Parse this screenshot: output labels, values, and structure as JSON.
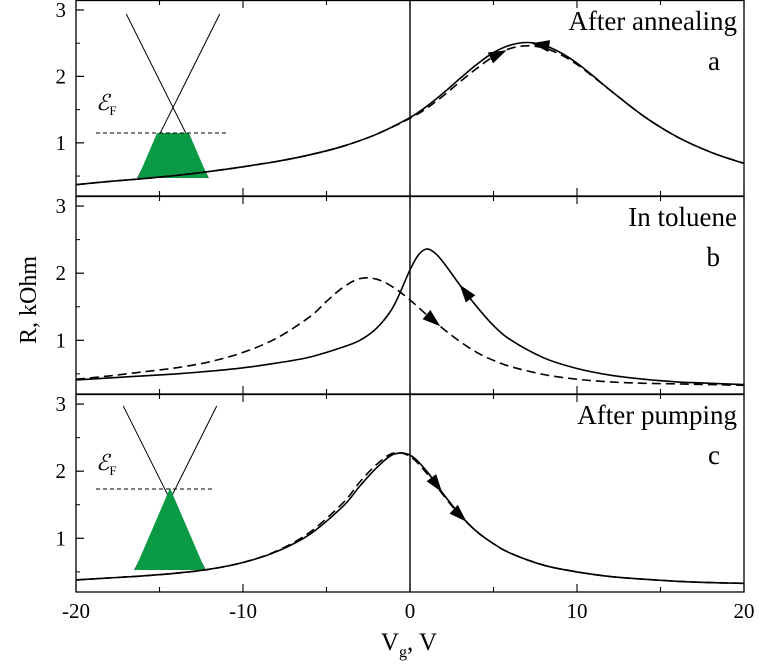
{
  "figure": {
    "ylabel": "R, kOhm",
    "xlabel_main": "V",
    "xlabel_sub": "g",
    "xlabel_unit": ", V",
    "x_ticks": [
      "-20",
      "-10",
      "0",
      "10",
      "20"
    ],
    "y_ticks": [
      "1",
      "2",
      "3"
    ],
    "ef_main": "ℰ",
    "ef_sub": "F"
  },
  "colors": {
    "dirac_fill": "#0a9a46",
    "line": "#000000"
  },
  "chart_data": [
    {
      "type": "line",
      "panel": "a",
      "title": "After annealing",
      "letter": "a",
      "xlim": [
        -20,
        20
      ],
      "ylim": [
        0.2,
        3.15
      ],
      "inset_fermi": "below_dirac",
      "series": [
        {
          "style": "solid",
          "x": [
            -20,
            -18,
            -16,
            -14,
            -12,
            -10,
            -8,
            -6,
            -4,
            -2,
            0,
            1,
            2,
            3,
            4,
            5,
            6,
            7,
            8,
            9,
            10,
            11,
            12,
            14,
            16,
            18,
            20
          ],
          "y": [
            0.37,
            0.42,
            0.46,
            0.51,
            0.57,
            0.64,
            0.72,
            0.82,
            0.95,
            1.13,
            1.38,
            1.55,
            1.75,
            1.97,
            2.18,
            2.36,
            2.47,
            2.51,
            2.47,
            2.36,
            2.2,
            2.0,
            1.79,
            1.4,
            1.09,
            0.86,
            0.69
          ]
        },
        {
          "style": "dashed",
          "x": [
            -20,
            -18,
            -16,
            -14,
            -12,
            -10,
            -8,
            -6,
            -4,
            -2,
            0,
            1,
            2,
            3,
            4,
            5,
            6,
            7,
            8,
            9,
            10,
            11,
            12,
            14,
            16,
            18,
            20
          ],
          "y": [
            0.37,
            0.42,
            0.46,
            0.51,
            0.57,
            0.64,
            0.72,
            0.82,
            0.95,
            1.13,
            1.37,
            1.52,
            1.71,
            1.92,
            2.12,
            2.3,
            2.42,
            2.46,
            2.43,
            2.33,
            2.18,
            1.99,
            1.79,
            1.4,
            1.09,
            0.86,
            0.69
          ]
        }
      ]
    },
    {
      "type": "line",
      "panel": "b",
      "title": "In  toluene",
      "letter": "b",
      "xlim": [
        -20,
        20
      ],
      "ylim": [
        0.2,
        3.15
      ],
      "series": [
        {
          "style": "solid",
          "x": [
            -20,
            -18,
            -16,
            -14,
            -12,
            -10,
            -8,
            -6,
            -4,
            -3,
            -2,
            -1,
            0,
            0.5,
            1,
            1.5,
            2,
            3,
            4,
            5,
            6,
            8,
            10,
            12,
            14,
            16,
            18,
            20
          ],
          "y": [
            0.41,
            0.44,
            0.47,
            0.5,
            0.54,
            0.59,
            0.66,
            0.75,
            0.9,
            1.0,
            1.18,
            1.5,
            2.05,
            2.27,
            2.36,
            2.3,
            2.16,
            1.82,
            1.5,
            1.22,
            1.01,
            0.74,
            0.58,
            0.48,
            0.42,
            0.38,
            0.36,
            0.34
          ]
        },
        {
          "style": "dashed",
          "x": [
            -20,
            -18,
            -16,
            -14,
            -12,
            -10,
            -8,
            -6,
            -5,
            -4,
            -3,
            -2,
            -1,
            0,
            1,
            2,
            3,
            4,
            5,
            6,
            8,
            10,
            12,
            14,
            16,
            18,
            20
          ],
          "y": [
            0.42,
            0.47,
            0.53,
            0.59,
            0.68,
            0.82,
            1.03,
            1.35,
            1.58,
            1.79,
            1.92,
            1.91,
            1.79,
            1.6,
            1.38,
            1.17,
            0.98,
            0.82,
            0.7,
            0.61,
            0.49,
            0.42,
            0.38,
            0.36,
            0.35,
            0.34,
            0.33
          ]
        }
      ]
    },
    {
      "type": "line",
      "panel": "c",
      "title": "After pumping",
      "letter": "c",
      "xlim": [
        -20,
        20
      ],
      "ylim": [
        0.2,
        3.15
      ],
      "inset_fermi": "above_dirac",
      "series": [
        {
          "style": "solid",
          "x": [
            -20,
            -18,
            -16,
            -14,
            -12,
            -10,
            -8,
            -6,
            -4,
            -3,
            -2,
            -1,
            0,
            1,
            2,
            3,
            4,
            5,
            6,
            8,
            10,
            12,
            14,
            16,
            18,
            20
          ],
          "y": [
            0.38,
            0.41,
            0.44,
            0.48,
            0.54,
            0.64,
            0.8,
            1.06,
            1.48,
            1.78,
            2.05,
            2.25,
            2.24,
            2.0,
            1.66,
            1.35,
            1.1,
            0.92,
            0.78,
            0.6,
            0.5,
            0.43,
            0.39,
            0.36,
            0.34,
            0.33
          ]
        },
        {
          "style": "dashed",
          "x": [
            -20,
            -18,
            -16,
            -14,
            -12,
            -10,
            -8,
            -6,
            -4,
            -3,
            -2,
            -1,
            0,
            1,
            2,
            3,
            4,
            5,
            6,
            8,
            10,
            12,
            14,
            16,
            18,
            20
          ],
          "y": [
            0.38,
            0.41,
            0.44,
            0.48,
            0.54,
            0.64,
            0.81,
            1.09,
            1.53,
            1.84,
            2.1,
            2.27,
            2.22,
            1.97,
            1.64,
            1.34,
            1.1,
            0.92,
            0.78,
            0.6,
            0.5,
            0.43,
            0.39,
            0.36,
            0.34,
            0.33
          ]
        }
      ]
    }
  ]
}
